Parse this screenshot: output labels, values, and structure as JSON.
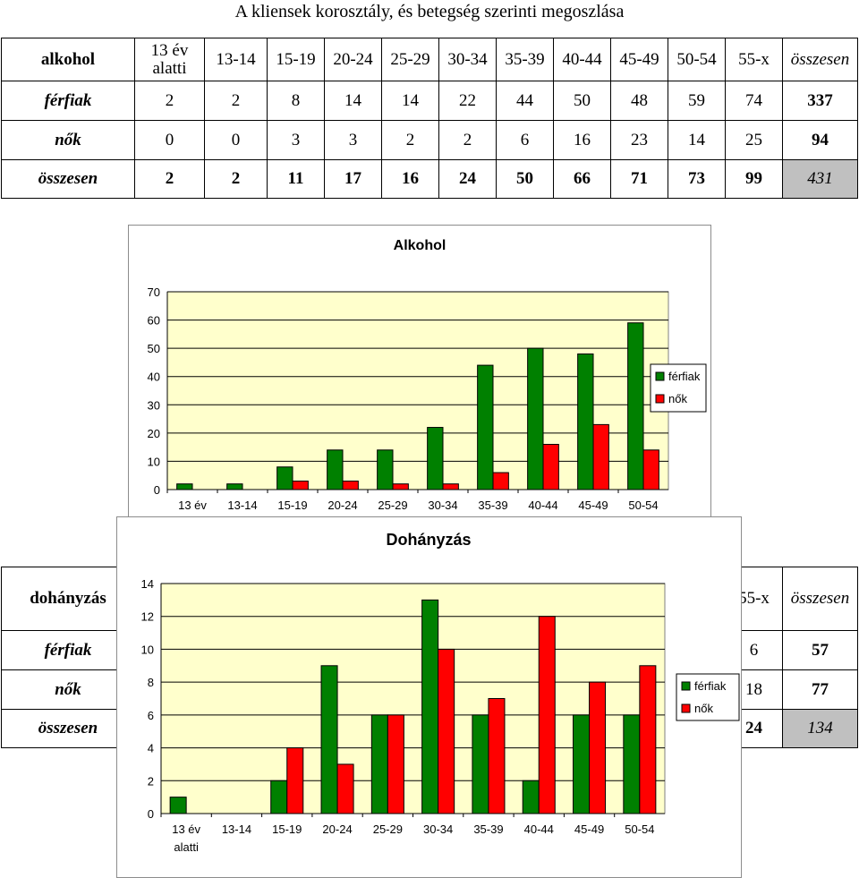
{
  "page_title": "A kliensek korosztály, és betegség szerinti megoszlása",
  "colors": {
    "ferfiak": "#008000",
    "nok": "#ff0000",
    "plot_bg": "#ffffcc",
    "grand_total_bg": "#c0c0c0"
  },
  "alkohol_table": {
    "corner": "alkohol",
    "headers": [
      "13 év alatti",
      "13-14",
      "15-19",
      "20-24",
      "25-29",
      "30-34",
      "35-39",
      "40-44",
      "45-49",
      "50-54",
      "55-x",
      "összesen"
    ],
    "rows": [
      {
        "label": "férfiak",
        "values": [
          "2",
          "2",
          "8",
          "14",
          "14",
          "22",
          "44",
          "50",
          "48",
          "59",
          "74"
        ],
        "total": "337"
      },
      {
        "label": "nők",
        "values": [
          "0",
          "0",
          "3",
          "3",
          "2",
          "2",
          "6",
          "16",
          "23",
          "14",
          "25"
        ],
        "total": "94"
      },
      {
        "label": "összesen",
        "values": [
          "2",
          "2",
          "11",
          "17",
          "16",
          "24",
          "50",
          "66",
          "71",
          "73",
          "99"
        ],
        "total": "431"
      }
    ]
  },
  "dohanyzas_table": {
    "corner": "dohányzás",
    "headers": [
      "",
      "",
      "",
      "",
      "",
      "",
      "",
      "",
      "",
      "",
      "55-x",
      "összesen"
    ],
    "rows": [
      {
        "label": "férfiak",
        "values": [
          "",
          "",
          "",
          "",
          "",
          "",
          "",
          "",
          "",
          "",
          "6"
        ],
        "total": "57"
      },
      {
        "label": "nők",
        "values": [
          "",
          "",
          "",
          "",
          "",
          "",
          "",
          "",
          "",
          "",
          "18"
        ],
        "total": "77"
      },
      {
        "label": "összesen",
        "values": [
          "",
          "",
          "",
          "",
          "",
          "",
          "",
          "",
          "",
          "",
          "24"
        ],
        "total": "134"
      }
    ]
  },
  "chart_data": [
    {
      "type": "bar",
      "title": "Alkohol",
      "categories": [
        "13 év",
        "13-14",
        "15-19",
        "20-24",
        "25-29",
        "30-34",
        "35-39",
        "40-44",
        "45-49",
        "50-54"
      ],
      "series": [
        {
          "name": "férfiak",
          "values": [
            2,
            2,
            8,
            14,
            14,
            22,
            44,
            50,
            48,
            59
          ]
        },
        {
          "name": "nők",
          "values": [
            0,
            0,
            3,
            3,
            2,
            2,
            6,
            16,
            23,
            14
          ]
        }
      ],
      "ylim": [
        0,
        70
      ],
      "yticks": [
        0,
        10,
        20,
        30,
        40,
        50,
        60,
        70
      ],
      "grid": true,
      "legend": "right"
    },
    {
      "type": "bar",
      "title": "Dohányzás",
      "categories": [
        "13 év alatti",
        "13-14",
        "15-19",
        "20-24",
        "25-29",
        "30-34",
        "35-39",
        "40-44",
        "45-49",
        "50-54"
      ],
      "series": [
        {
          "name": "férfiak",
          "values": [
            1,
            0,
            2,
            9,
            6,
            13,
            6,
            2,
            6,
            6
          ]
        },
        {
          "name": "nők",
          "values": [
            0,
            0,
            4,
            3,
            6,
            10,
            7,
            12,
            8,
            9
          ]
        }
      ],
      "ylim": [
        0,
        14
      ],
      "yticks": [
        0,
        2,
        4,
        6,
        8,
        10,
        12,
        14
      ],
      "grid": true,
      "legend": "right"
    }
  ]
}
